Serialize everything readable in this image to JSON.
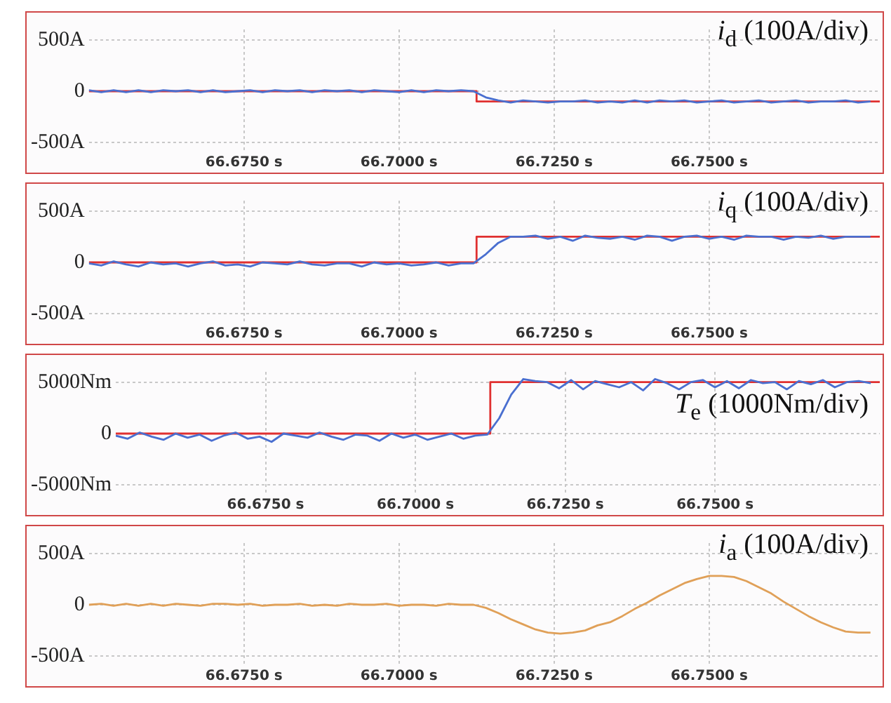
{
  "chart_data": [
    {
      "type": "line",
      "title": "i$_{d}$ (100A/div)",
      "marker": "none",
      "grid": true,
      "xlim": [
        66.65,
        66.7775
      ],
      "xticks": [
        {
          "value": 66.675,
          "label": "66.6750 s"
        },
        {
          "value": 66.7,
          "label": "66.7000 s"
        },
        {
          "value": 66.725,
          "label": "66.7250 s"
        },
        {
          "value": 66.75,
          "label": "66.7500 s"
        }
      ],
      "ylim": [
        -600,
        600
      ],
      "yticks": [
        {
          "value": 500,
          "label": "500A"
        },
        {
          "value": 0,
          "label": "0"
        },
        {
          "value": -500,
          "label": "-500A"
        }
      ],
      "x": [
        66.65,
        66.652,
        66.654,
        66.656,
        66.658,
        66.66,
        66.662,
        66.664,
        66.666,
        66.668,
        66.67,
        66.672,
        66.674,
        66.676,
        66.678,
        66.68,
        66.682,
        66.684,
        66.686,
        66.688,
        66.69,
        66.692,
        66.694,
        66.696,
        66.698,
        66.7,
        66.702,
        66.704,
        66.706,
        66.708,
        66.71,
        66.712,
        66.714,
        66.716,
        66.718,
        66.72,
        66.722,
        66.724,
        66.726,
        66.728,
        66.73,
        66.732,
        66.734,
        66.736,
        66.738,
        66.74,
        66.742,
        66.744,
        66.746,
        66.748,
        66.75,
        66.752,
        66.754,
        66.756,
        66.758,
        66.76,
        66.762,
        66.764,
        66.766,
        66.768,
        66.77,
        66.772,
        66.774,
        66.776
      ],
      "series": [
        {
          "color": "#4a6fd0",
          "values": [
            10,
            -10,
            10,
            -10,
            10,
            -10,
            10,
            0,
            10,
            -10,
            10,
            -10,
            0,
            10,
            -10,
            10,
            0,
            10,
            -10,
            10,
            0,
            10,
            -10,
            10,
            0,
            -10,
            10,
            -10,
            10,
            0,
            10,
            0,
            -60,
            -90,
            -110,
            -90,
            -100,
            -110,
            -100,
            -100,
            -90,
            -110,
            -100,
            -110,
            -90,
            -110,
            -90,
            -100,
            -90,
            -110,
            -100,
            -90,
            -110,
            -100,
            -90,
            -110,
            -100,
            -90,
            -110,
            -100,
            -100,
            -90,
            -110,
            -100
          ]
        },
        {
          "color": "#e03030",
          "x": [
            66.65,
            66.7125,
            66.7125,
            66.7775
          ],
          "values": [
            0,
            0,
            -100,
            -100
          ]
        }
      ]
    },
    {
      "type": "line",
      "title": "i$_{q}$ (100A/div)",
      "marker": "none",
      "grid": true,
      "xlim": [
        66.65,
        66.7775
      ],
      "xticks": [
        {
          "value": 66.675,
          "label": "66.6750 s"
        },
        {
          "value": 66.7,
          "label": "66.7000 s"
        },
        {
          "value": 66.725,
          "label": "66.7250 s"
        },
        {
          "value": 66.75,
          "label": "66.7500 s"
        }
      ],
      "ylim": [
        -600,
        600
      ],
      "yticks": [
        {
          "value": 500,
          "label": "500A"
        },
        {
          "value": 0,
          "label": "0"
        },
        {
          "value": -500,
          "label": "-500A"
        }
      ],
      "x": [
        66.65,
        66.652,
        66.654,
        66.656,
        66.658,
        66.66,
        66.662,
        66.664,
        66.666,
        66.668,
        66.67,
        66.672,
        66.674,
        66.676,
        66.678,
        66.68,
        66.682,
        66.684,
        66.686,
        66.688,
        66.69,
        66.692,
        66.694,
        66.696,
        66.698,
        66.7,
        66.702,
        66.704,
        66.706,
        66.708,
        66.71,
        66.712,
        66.714,
        66.716,
        66.718,
        66.72,
        66.722,
        66.724,
        66.726,
        66.728,
        66.73,
        66.732,
        66.734,
        66.736,
        66.738,
        66.74,
        66.742,
        66.744,
        66.746,
        66.748,
        66.75,
        66.752,
        66.754,
        66.756,
        66.758,
        66.76,
        66.762,
        66.764,
        66.766,
        66.768,
        66.77,
        66.772,
        66.774,
        66.776
      ],
      "series": [
        {
          "color": "#4a6fd0",
          "values": [
            -10,
            -30,
            10,
            -20,
            -40,
            0,
            -20,
            -10,
            -40,
            -10,
            10,
            -30,
            -20,
            -40,
            0,
            -10,
            -20,
            10,
            -20,
            -30,
            -10,
            -10,
            -40,
            0,
            -20,
            -10,
            -30,
            -20,
            0,
            -30,
            -10,
            -10,
            80,
            190,
            250,
            250,
            260,
            230,
            250,
            210,
            260,
            240,
            230,
            250,
            220,
            260,
            250,
            210,
            250,
            260,
            230,
            250,
            220,
            260,
            250,
            250,
            220,
            250,
            240,
            260,
            230,
            250,
            250,
            250
          ]
        },
        {
          "color": "#e03030",
          "x": [
            66.65,
            66.7125,
            66.7125,
            66.7775
          ],
          "values": [
            0,
            0,
            250,
            250
          ]
        }
      ]
    },
    {
      "type": "line",
      "title": "T$_{e}$ (1000Nm/div)",
      "marker": "none",
      "grid": true,
      "xlim": [
        66.65,
        66.7775
      ],
      "xticks": [
        {
          "value": 66.675,
          "label": "66.6750 s"
        },
        {
          "value": 66.7,
          "label": "66.7000 s"
        },
        {
          "value": 66.725,
          "label": "66.7250 s"
        },
        {
          "value": 66.75,
          "label": "66.7500 s"
        }
      ],
      "ylim": [
        -6000,
        6000
      ],
      "yticks": [
        {
          "value": 5000,
          "label": "5000Nm"
        },
        {
          "value": 0,
          "label": "0"
        },
        {
          "value": -5000,
          "label": "-5000Nm"
        }
      ],
      "x": [
        66.65,
        66.652,
        66.654,
        66.656,
        66.658,
        66.66,
        66.662,
        66.664,
        66.666,
        66.668,
        66.67,
        66.672,
        66.674,
        66.676,
        66.678,
        66.68,
        66.682,
        66.684,
        66.686,
        66.688,
        66.69,
        66.692,
        66.694,
        66.696,
        66.698,
        66.7,
        66.702,
        66.704,
        66.706,
        66.708,
        66.71,
        66.712,
        66.714,
        66.716,
        66.718,
        66.72,
        66.722,
        66.724,
        66.726,
        66.728,
        66.73,
        66.732,
        66.734,
        66.736,
        66.738,
        66.74,
        66.742,
        66.744,
        66.746,
        66.748,
        66.75,
        66.752,
        66.754,
        66.756,
        66.758,
        66.76,
        66.762,
        66.764,
        66.766,
        66.768,
        66.77,
        66.772,
        66.774,
        66.776
      ],
      "series": [
        {
          "color": "#4a6fd0",
          "values": [
            -200,
            -500,
            100,
            -300,
            -600,
            0,
            -400,
            -100,
            -700,
            -200,
            100,
            -500,
            -300,
            -800,
            0,
            -200,
            -400,
            100,
            -300,
            -600,
            -100,
            -200,
            -700,
            0,
            -400,
            -100,
            -600,
            -300,
            0,
            -500,
            -200,
            -100,
            1500,
            3800,
            5300,
            5100,
            5000,
            4400,
            5200,
            4300,
            5100,
            4800,
            4500,
            5000,
            4200,
            5300,
            4900,
            4300,
            5000,
            5200,
            4500,
            5100,
            4400,
            5200,
            4900,
            5000,
            4300,
            5100,
            4800,
            5200,
            4500,
            5000,
            5100,
            4900
          ]
        },
        {
          "color": "#e03030",
          "x": [
            66.65,
            66.7125,
            66.7125,
            66.7775
          ],
          "values": [
            0,
            0,
            5000,
            5000
          ]
        }
      ]
    },
    {
      "type": "line",
      "title": "i$_{a}$ (100A/div)",
      "marker": "none",
      "grid": true,
      "xlim": [
        66.65,
        66.7775
      ],
      "xticks": [
        {
          "value": 66.675,
          "label": "66.6750 s"
        },
        {
          "value": 66.7,
          "label": "66.7000 s"
        },
        {
          "value": 66.725,
          "label": "66.7250 s"
        },
        {
          "value": 66.75,
          "label": "66.7500 s"
        }
      ],
      "ylim": [
        -600,
        600
      ],
      "yticks": [
        {
          "value": 500,
          "label": "500A"
        },
        {
          "value": 0,
          "label": "0"
        },
        {
          "value": -500,
          "label": "-500A"
        }
      ],
      "x": [
        66.65,
        66.652,
        66.654,
        66.656,
        66.658,
        66.66,
        66.662,
        66.664,
        66.666,
        66.668,
        66.67,
        66.672,
        66.674,
        66.676,
        66.678,
        66.68,
        66.682,
        66.684,
        66.686,
        66.688,
        66.69,
        66.692,
        66.694,
        66.696,
        66.698,
        66.7,
        66.702,
        66.704,
        66.706,
        66.708,
        66.71,
        66.712,
        66.714,
        66.716,
        66.718,
        66.72,
        66.722,
        66.724,
        66.726,
        66.728,
        66.73,
        66.732,
        66.734,
        66.736,
        66.738,
        66.74,
        66.742,
        66.744,
        66.746,
        66.748,
        66.75,
        66.752,
        66.754,
        66.756,
        66.758,
        66.76,
        66.762,
        66.764,
        66.766,
        66.768,
        66.77,
        66.772,
        66.774,
        66.776
      ],
      "series": [
        {
          "color": "#e0a058",
          "values": [
            0,
            10,
            -10,
            10,
            -10,
            10,
            -10,
            10,
            0,
            -10,
            10,
            10,
            0,
            10,
            -10,
            0,
            0,
            10,
            -10,
            0,
            -10,
            10,
            0,
            0,
            10,
            -10,
            0,
            0,
            -10,
            10,
            0,
            0,
            -30,
            -80,
            -140,
            -190,
            -240,
            -270,
            -280,
            -270,
            -250,
            -200,
            -170,
            -110,
            -40,
            20,
            90,
            150,
            210,
            250,
            280,
            280,
            270,
            230,
            170,
            110,
            30,
            -40,
            -110,
            -170,
            -220,
            -260,
            -270,
            -270
          ]
        }
      ]
    }
  ]
}
